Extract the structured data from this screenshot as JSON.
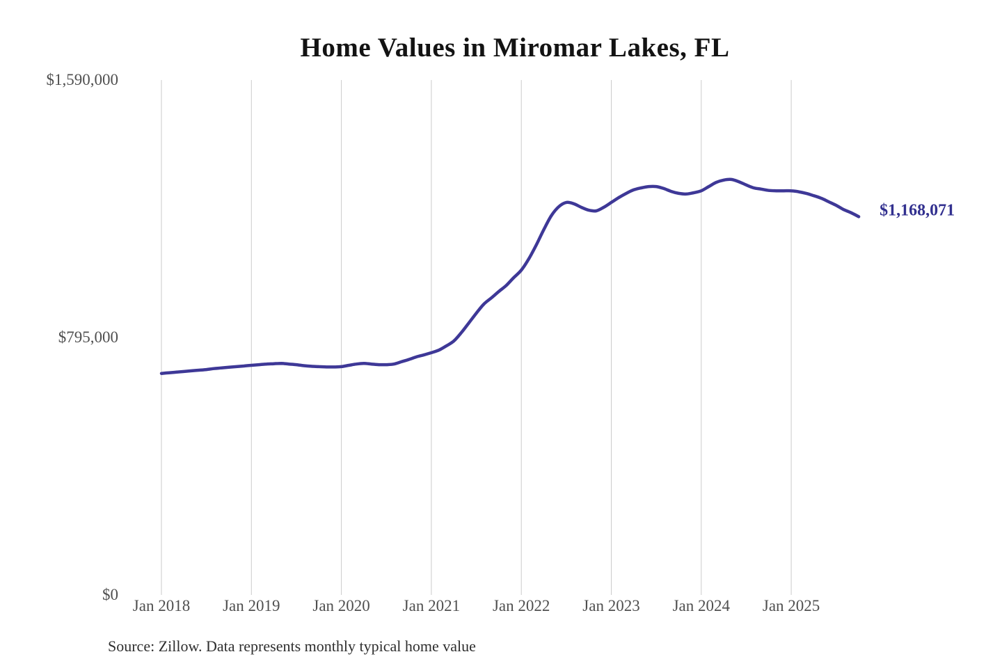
{
  "chart": {
    "title": "Home Values in Miromar Lakes, FL",
    "end_label": "$1,168,071",
    "source": "Source: Zillow. Data represents monthly typical home value",
    "line_color": "#3e3897",
    "end_label_color": "#32308f",
    "grid_color": "#cbcbcb",
    "axis_text_color": "#4f4f4f"
  },
  "chart_data": {
    "type": "line",
    "title": "Home Values in Miromar Lakes, FL",
    "series_name": "Monthly typical home value",
    "xlabel": "",
    "ylabel": "",
    "ylim": [
      0,
      1590000
    ],
    "grid": "vertical-only",
    "legend": false,
    "y_ticks": [
      {
        "value": 0,
        "label": "$0"
      },
      {
        "value": 795000,
        "label": "$795,000"
      },
      {
        "value": 1590000,
        "label": "$1,590,000"
      }
    ],
    "x_ticks": [
      {
        "month_index": 0,
        "label": "Jan 2018"
      },
      {
        "month_index": 12,
        "label": "Jan 2019"
      },
      {
        "month_index": 24,
        "label": "Jan 2020"
      },
      {
        "month_index": 36,
        "label": "Jan 2021"
      },
      {
        "month_index": 48,
        "label": "Jan 2022"
      },
      {
        "month_index": 60,
        "label": "Jan 2023"
      },
      {
        "month_index": 72,
        "label": "Jan 2024"
      },
      {
        "month_index": 84,
        "label": "Jan 2025"
      }
    ],
    "last_point_label": "$1,168,071",
    "months": [
      "Jan 2018",
      "Feb 2018",
      "Mar 2018",
      "Apr 2018",
      "May 2018",
      "Jun 2018",
      "Jul 2018",
      "Aug 2018",
      "Sep 2018",
      "Oct 2018",
      "Nov 2018",
      "Dec 2018",
      "Jan 2019",
      "Feb 2019",
      "Mar 2019",
      "Apr 2019",
      "May 2019",
      "Jun 2019",
      "Jul 2019",
      "Aug 2019",
      "Sep 2019",
      "Oct 2019",
      "Nov 2019",
      "Dec 2019",
      "Jan 2020",
      "Feb 2020",
      "Mar 2020",
      "Apr 2020",
      "May 2020",
      "Jun 2020",
      "Jul 2020",
      "Aug 2020",
      "Sep 2020",
      "Oct 2020",
      "Nov 2020",
      "Dec 2020",
      "Jan 2021",
      "Feb 2021",
      "Mar 2021",
      "Apr 2021",
      "May 2021",
      "Jun 2021",
      "Jul 2021",
      "Aug 2021",
      "Sep 2021",
      "Oct 2021",
      "Nov 2021",
      "Dec 2021",
      "Jan 2022",
      "Feb 2022",
      "Mar 2022",
      "Apr 2022",
      "May 2022",
      "Jun 2022",
      "Jul 2022",
      "Aug 2022",
      "Sep 2022",
      "Oct 2022",
      "Nov 2022",
      "Dec 2022",
      "Jan 2023",
      "Feb 2023",
      "Mar 2023",
      "Apr 2023",
      "May 2023",
      "Jun 2023",
      "Jul 2023",
      "Aug 2023",
      "Sep 2023",
      "Oct 2023",
      "Nov 2023",
      "Dec 2023",
      "Jan 2024",
      "Feb 2024",
      "Mar 2024",
      "Apr 2024",
      "May 2024",
      "Jun 2024",
      "Jul 2024",
      "Aug 2024",
      "Sep 2024",
      "Oct 2024",
      "Nov 2024",
      "Dec 2024",
      "Jan 2025",
      "Feb 2025",
      "Mar 2025",
      "Apr 2025",
      "May 2025",
      "Jun 2025",
      "Jul 2025",
      "Aug 2025",
      "Sep 2025",
      "Oct 2025"
    ],
    "values": [
      684000,
      686000,
      688000,
      690000,
      692000,
      694000,
      696000,
      699000,
      701000,
      703000,
      705000,
      707000,
      709000,
      711000,
      713000,
      714000,
      715000,
      713000,
      711000,
      708000,
      706000,
      705000,
      704000,
      704000,
      705000,
      709000,
      713000,
      715000,
      713000,
      711000,
      711000,
      713000,
      720000,
      727000,
      735000,
      741000,
      748000,
      756000,
      769000,
      784000,
      810000,
      840000,
      870000,
      898000,
      917000,
      937000,
      956000,
      980000,
      1003000,
      1038000,
      1081000,
      1128000,
      1171000,
      1199000,
      1212000,
      1208000,
      1197000,
      1188000,
      1186000,
      1197000,
      1212000,
      1227000,
      1240000,
      1251000,
      1257000,
      1261000,
      1261000,
      1255000,
      1246000,
      1240000,
      1238000,
      1242000,
      1248000,
      1261000,
      1274000,
      1281000,
      1283000,
      1276000,
      1266000,
      1257000,
      1253000,
      1249000,
      1248000,
      1248000,
      1248000,
      1245000,
      1240000,
      1233000,
      1225000,
      1214000,
      1203000,
      1190000,
      1180000,
      1168071
    ]
  }
}
